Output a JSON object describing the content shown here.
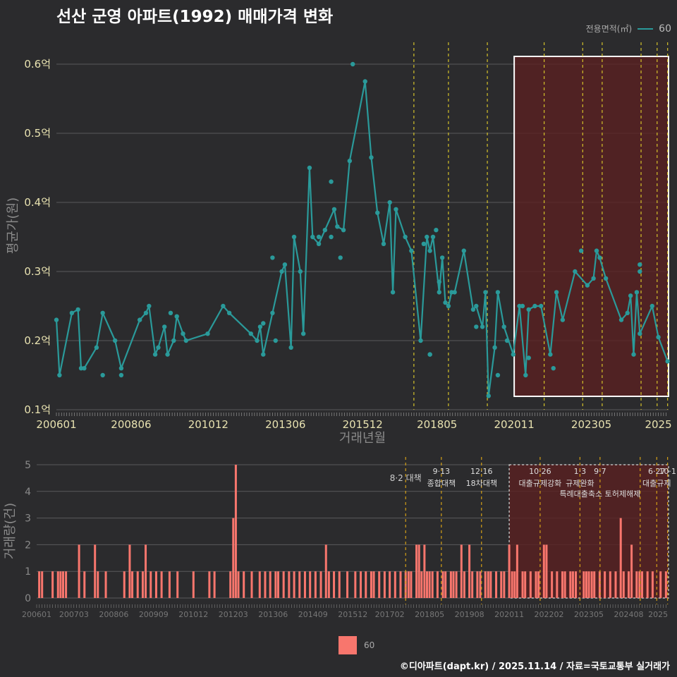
{
  "title": "선산 군영 아파트(1992) 매매가격 변화",
  "legend": {
    "title": "전용면적(㎡)",
    "series": "60",
    "line_color": "#2a9a9a",
    "bar_color": "#f8766d"
  },
  "footer": "©디아파트(dapt.kr) / 2025.11.14 / 자료=국토교통부 실거래가",
  "colors": {
    "background": "#2b2b2d",
    "policy_line": "#d4c22a",
    "highlight_fill": "#5a2020",
    "line": "#2a9a9a",
    "bar": "#f8766d"
  },
  "chart_data": [
    {
      "type": "line",
      "title": "평균가(원) by 거래년월",
      "xlabel": "거래년월",
      "ylabel": "평균가(원)",
      "ylim": [
        0.1,
        0.6
      ],
      "y_ticks": [
        "0.1억",
        "0.2억",
        "0.3억",
        "0.4억",
        "0.5억",
        "0.6억"
      ],
      "x_ticks": [
        "200601",
        "200806",
        "201012",
        "201306",
        "201512",
        "201805",
        "202011",
        "202305",
        "2025"
      ],
      "x_tick_values": [
        2006.0,
        2008.42,
        2010.92,
        2013.42,
        2015.92,
        2018.33,
        2020.83,
        2023.33,
        2025.5
      ],
      "x_range": [
        2006.0,
        2025.83
      ],
      "highlight_range": [
        2020.83,
        2025.83
      ],
      "policy_dates": [
        2017.58,
        2018.7,
        2019.96,
        2021.8,
        2023.05,
        2023.68,
        2024.94,
        2025.46,
        2025.8
      ],
      "series": [
        {
          "name": "60",
          "x": [
            2006.0,
            2006.1,
            2006.5,
            2006.7,
            2006.8,
            2006.9,
            2007.3,
            2007.5,
            2007.9,
            2008.1,
            2008.7,
            2008.9,
            2009.0,
            2009.2,
            2009.3,
            2009.5,
            2009.6,
            2009.8,
            2009.9,
            2010.1,
            2010.2,
            2010.9,
            2011.4,
            2011.6,
            2012.3,
            2012.5,
            2012.6,
            2012.7,
            2013.0,
            2013.3,
            2013.4,
            2013.6,
            2013.7,
            2013.9,
            2014.0,
            2014.2,
            2014.3,
            2014.5,
            2014.7,
            2015.0,
            2015.1,
            2015.3,
            2015.5,
            2016.0,
            2016.2,
            2016.4,
            2016.6,
            2016.8,
            2016.9,
            2017.0,
            2017.3,
            2017.5,
            2017.8,
            2018.0,
            2018.1,
            2018.2,
            2018.4,
            2018.5,
            2018.6,
            2018.7,
            2018.8,
            2018.9,
            2019.2,
            2019.5,
            2019.6,
            2019.8,
            2019.9,
            2020.0,
            2020.2,
            2020.3,
            2020.5,
            2020.8,
            2021.0,
            2021.2,
            2021.3,
            2021.5,
            2021.7,
            2022.0,
            2022.2,
            2022.4,
            2022.8,
            2023.2,
            2023.4,
            2023.5,
            2023.6,
            2023.8,
            2024.3,
            2024.5,
            2024.6,
            2024.7,
            2024.8,
            2024.9,
            2025.3,
            2025.5,
            2025.8
          ],
          "values": [
            0.23,
            0.15,
            0.24,
            0.245,
            0.16,
            0.16,
            0.19,
            0.24,
            0.2,
            0.16,
            0.23,
            0.24,
            0.25,
            0.18,
            0.19,
            0.22,
            0.18,
            0.2,
            0.235,
            0.21,
            0.2,
            0.21,
            0.25,
            0.24,
            0.21,
            0.2,
            0.22,
            0.18,
            0.24,
            0.3,
            0.31,
            0.19,
            0.35,
            0.3,
            0.21,
            0.45,
            0.35,
            0.34,
            0.36,
            0.39,
            0.365,
            0.36,
            0.46,
            0.575,
            0.465,
            0.385,
            0.34,
            0.4,
            0.27,
            0.39,
            0.35,
            0.33,
            0.2,
            0.35,
            0.33,
            0.35,
            0.27,
            0.32,
            0.255,
            0.25,
            0.27,
            0.27,
            0.33,
            0.245,
            0.25,
            0.22,
            0.27,
            0.12,
            0.19,
            0.27,
            0.22,
            0.18,
            0.25,
            0.15,
            0.245,
            0.25,
            0.25,
            0.18,
            0.27,
            0.23,
            0.3,
            0.28,
            0.29,
            0.33,
            0.32,
            0.29,
            0.23,
            0.24,
            0.265,
            0.18,
            0.27,
            0.21,
            0.25,
            0.205,
            0.17
          ],
          "scatter_x": [
            2008.1,
            2007.5,
            2012.7,
            2014.9,
            2015.2,
            2014.9,
            2018.1,
            2018.3,
            2017.9,
            2018.1,
            2018.4,
            2020.3,
            2020.6,
            2021.3,
            2021.1,
            2022.1,
            2024.9,
            2024.9,
            2019.6,
            2023.0,
            2013.0,
            2013.1,
            2009.7,
            2015.6,
            2014.5
          ],
          "scatter_values": [
            0.15,
            0.15,
            0.225,
            0.43,
            0.32,
            0.35,
            0.18,
            0.36,
            0.34,
            0.18,
            0.285,
            0.15,
            0.2,
            0.175,
            0.25,
            0.16,
            0.31,
            0.3,
            0.22,
            0.33,
            0.32,
            0.2,
            0.24,
            0.6,
            0.35
          ]
        }
      ]
    },
    {
      "type": "bar",
      "title": "거래량(건) by 거래년월",
      "ylabel": "거래량(건)",
      "ylim": [
        0,
        5
      ],
      "y_ticks": [
        "0",
        "1",
        "2",
        "3",
        "4",
        "5"
      ],
      "x_ticks": [
        "200601",
        "200703",
        "200806",
        "200909",
        "201012",
        "201203",
        "201306",
        "201409",
        "201512",
        "201702",
        "201805",
        "201908",
        "202011",
        "202202",
        "202305",
        "202408",
        "2025"
      ],
      "x_tick_values": [
        2006.0,
        2007.17,
        2008.42,
        2009.67,
        2010.92,
        2012.17,
        2013.42,
        2014.67,
        2015.92,
        2017.08,
        2018.33,
        2019.58,
        2020.83,
        2022.08,
        2023.33,
        2024.58,
        2025.5
      ],
      "x_range": [
        2006.0,
        2025.83
      ],
      "highlight_range": [
        2020.83,
        2025.83
      ],
      "policy_dates": [
        2017.58,
        2018.7,
        2019.96,
        2021.8,
        2023.05,
        2023.68,
        2024.94,
        2025.46,
        2025.8
      ],
      "policy_labels": [
        {
          "date": "8·2",
          "text": "8·2 대책",
          "x": 2017.58,
          "row": 1
        },
        {
          "date": "9·13",
          "text": "종합대책",
          "x": 2018.7,
          "row": 0
        },
        {
          "date": "12·16",
          "text": "18차대책",
          "x": 2019.96,
          "row": 0
        },
        {
          "date": "10·26",
          "text": "대출규제강화",
          "x": 2021.8,
          "row": 0
        },
        {
          "date": "1·3",
          "text": "규제완화",
          "x": 2023.05,
          "row": 0
        },
        {
          "date": "9·7",
          "text": "특례대출축소 토허제해제",
          "x": 2023.68,
          "row": 1
        },
        {
          "date": "6·27",
          "text": "대출규제",
          "x": 2025.46,
          "row": 0
        },
        {
          "date": "10·1",
          "text": "",
          "x": 2025.8,
          "row": 0
        }
      ],
      "series": [
        {
          "name": "60",
          "x": [
            2006.08,
            2006.17,
            2006.5,
            2006.67,
            2006.75,
            2006.83,
            2006.92,
            2007.33,
            2007.5,
            2007.83,
            2007.92,
            2008.17,
            2008.75,
            2008.92,
            2009.0,
            2009.17,
            2009.33,
            2009.42,
            2009.58,
            2009.75,
            2009.92,
            2010.17,
            2010.42,
            2010.92,
            2011.42,
            2011.58,
            2012.08,
            2012.17,
            2012.25,
            2012.33,
            2012.5,
            2012.75,
            2013.0,
            2013.17,
            2013.33,
            2013.5,
            2013.58,
            2013.75,
            2013.92,
            2014.08,
            2014.25,
            2014.42,
            2014.58,
            2014.75,
            2014.92,
            2015.08,
            2015.17,
            2015.33,
            2015.5,
            2015.75,
            2016.0,
            2016.17,
            2016.33,
            2016.5,
            2016.58,
            2016.75,
            2016.92,
            2017.08,
            2017.25,
            2017.42,
            2017.58,
            2017.67,
            2017.75,
            2017.92,
            2018.0,
            2018.08,
            2018.17,
            2018.25,
            2018.33,
            2018.42,
            2018.58,
            2018.75,
            2018.83,
            2019.0,
            2019.08,
            2019.17,
            2019.33,
            2019.42,
            2019.58,
            2019.67,
            2019.83,
            2019.92,
            2020.08,
            2020.17,
            2020.25,
            2020.42,
            2020.58,
            2020.67,
            2020.83,
            2020.92,
            2021.0,
            2021.08,
            2021.25,
            2021.33,
            2021.5,
            2021.67,
            2021.75,
            2021.92,
            2022.0,
            2022.17,
            2022.33,
            2022.5,
            2022.58,
            2022.75,
            2022.83,
            2022.92,
            2023.17,
            2023.25,
            2023.33,
            2023.42,
            2023.5,
            2023.67,
            2023.83,
            2024.0,
            2024.17,
            2024.33,
            2024.42,
            2024.58,
            2024.67,
            2024.83,
            2024.92,
            2025.0,
            2025.17,
            2025.33,
            2025.58,
            2025.75
          ],
          "values": [
            1,
            1,
            1,
            1,
            1,
            1,
            1,
            2,
            1,
            2,
            1,
            1,
            1,
            2,
            1,
            1,
            1,
            2,
            1,
            1,
            1,
            1,
            1,
            1,
            1,
            1,
            1,
            3,
            5,
            1,
            1,
            1,
            1,
            1,
            1,
            1,
            1,
            1,
            1,
            1,
            1,
            1,
            1,
            1,
            1,
            2,
            1,
            1,
            1,
            1,
            1,
            1,
            1,
            1,
            1,
            1,
            1,
            1,
            1,
            1,
            1,
            1,
            1,
            2,
            2,
            1,
            2,
            1,
            1,
            1,
            1,
            1,
            1,
            1,
            1,
            1,
            2,
            1,
            2,
            1,
            1,
            1,
            1,
            1,
            1,
            1,
            1,
            1,
            2,
            1,
            1,
            2,
            1,
            1,
            1,
            1,
            1,
            2,
            2,
            1,
            1,
            1,
            1,
            1,
            1,
            1,
            1,
            1,
            1,
            1,
            1,
            1,
            1,
            1,
            1,
            3,
            1,
            1,
            2,
            1,
            1,
            1,
            1,
            1,
            1,
            1
          ]
        }
      ]
    }
  ]
}
